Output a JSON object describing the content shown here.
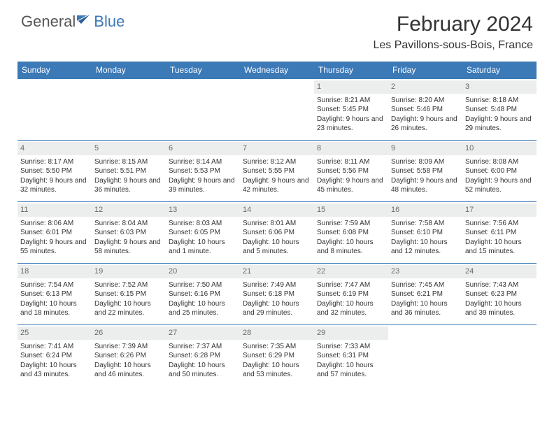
{
  "brand": {
    "general": "General",
    "blue": "Blue"
  },
  "title": "February 2024",
  "location": "Les Pavillons-sous-Bois, France",
  "colors": {
    "accent": "#3b79b7",
    "daynum_bg": "#eceded",
    "daynum_text": "#6a6a6a",
    "text": "#333333",
    "background": "#ffffff"
  },
  "dayNames": [
    "Sunday",
    "Monday",
    "Tuesday",
    "Wednesday",
    "Thursday",
    "Friday",
    "Saturday"
  ],
  "weeks": [
    [
      null,
      null,
      null,
      null,
      {
        "n": "1",
        "sr": "8:21 AM",
        "ss": "5:45 PM",
        "dl": "9 hours and 23 minutes."
      },
      {
        "n": "2",
        "sr": "8:20 AM",
        "ss": "5:46 PM",
        "dl": "9 hours and 26 minutes."
      },
      {
        "n": "3",
        "sr": "8:18 AM",
        "ss": "5:48 PM",
        "dl": "9 hours and 29 minutes."
      }
    ],
    [
      {
        "n": "4",
        "sr": "8:17 AM",
        "ss": "5:50 PM",
        "dl": "9 hours and 32 minutes."
      },
      {
        "n": "5",
        "sr": "8:15 AM",
        "ss": "5:51 PM",
        "dl": "9 hours and 36 minutes."
      },
      {
        "n": "6",
        "sr": "8:14 AM",
        "ss": "5:53 PM",
        "dl": "9 hours and 39 minutes."
      },
      {
        "n": "7",
        "sr": "8:12 AM",
        "ss": "5:55 PM",
        "dl": "9 hours and 42 minutes."
      },
      {
        "n": "8",
        "sr": "8:11 AM",
        "ss": "5:56 PM",
        "dl": "9 hours and 45 minutes."
      },
      {
        "n": "9",
        "sr": "8:09 AM",
        "ss": "5:58 PM",
        "dl": "9 hours and 48 minutes."
      },
      {
        "n": "10",
        "sr": "8:08 AM",
        "ss": "6:00 PM",
        "dl": "9 hours and 52 minutes."
      }
    ],
    [
      {
        "n": "11",
        "sr": "8:06 AM",
        "ss": "6:01 PM",
        "dl": "9 hours and 55 minutes."
      },
      {
        "n": "12",
        "sr": "8:04 AM",
        "ss": "6:03 PM",
        "dl": "9 hours and 58 minutes."
      },
      {
        "n": "13",
        "sr": "8:03 AM",
        "ss": "6:05 PM",
        "dl": "10 hours and 1 minute."
      },
      {
        "n": "14",
        "sr": "8:01 AM",
        "ss": "6:06 PM",
        "dl": "10 hours and 5 minutes."
      },
      {
        "n": "15",
        "sr": "7:59 AM",
        "ss": "6:08 PM",
        "dl": "10 hours and 8 minutes."
      },
      {
        "n": "16",
        "sr": "7:58 AM",
        "ss": "6:10 PM",
        "dl": "10 hours and 12 minutes."
      },
      {
        "n": "17",
        "sr": "7:56 AM",
        "ss": "6:11 PM",
        "dl": "10 hours and 15 minutes."
      }
    ],
    [
      {
        "n": "18",
        "sr": "7:54 AM",
        "ss": "6:13 PM",
        "dl": "10 hours and 18 minutes."
      },
      {
        "n": "19",
        "sr": "7:52 AM",
        "ss": "6:15 PM",
        "dl": "10 hours and 22 minutes."
      },
      {
        "n": "20",
        "sr": "7:50 AM",
        "ss": "6:16 PM",
        "dl": "10 hours and 25 minutes."
      },
      {
        "n": "21",
        "sr": "7:49 AM",
        "ss": "6:18 PM",
        "dl": "10 hours and 29 minutes."
      },
      {
        "n": "22",
        "sr": "7:47 AM",
        "ss": "6:19 PM",
        "dl": "10 hours and 32 minutes."
      },
      {
        "n": "23",
        "sr": "7:45 AM",
        "ss": "6:21 PM",
        "dl": "10 hours and 36 minutes."
      },
      {
        "n": "24",
        "sr": "7:43 AM",
        "ss": "6:23 PM",
        "dl": "10 hours and 39 minutes."
      }
    ],
    [
      {
        "n": "25",
        "sr": "7:41 AM",
        "ss": "6:24 PM",
        "dl": "10 hours and 43 minutes."
      },
      {
        "n": "26",
        "sr": "7:39 AM",
        "ss": "6:26 PM",
        "dl": "10 hours and 46 minutes."
      },
      {
        "n": "27",
        "sr": "7:37 AM",
        "ss": "6:28 PM",
        "dl": "10 hours and 50 minutes."
      },
      {
        "n": "28",
        "sr": "7:35 AM",
        "ss": "6:29 PM",
        "dl": "10 hours and 53 minutes."
      },
      {
        "n": "29",
        "sr": "7:33 AM",
        "ss": "6:31 PM",
        "dl": "10 hours and 57 minutes."
      },
      null,
      null
    ]
  ],
  "labels": {
    "sunrise": "Sunrise:",
    "sunset": "Sunset:",
    "daylight": "Daylight:"
  }
}
